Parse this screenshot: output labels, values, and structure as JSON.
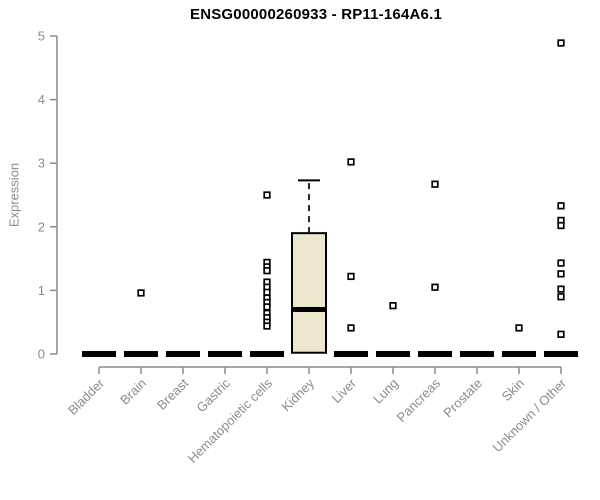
{
  "chart_data": {
    "type": "boxplot",
    "title": "ENSG00000260933 - RP11-164A6.1",
    "ylabel": "Expression",
    "xlabel": "",
    "ylim": [
      0,
      5
    ],
    "yticks": [
      0,
      1,
      2,
      3,
      4,
      5
    ],
    "grid": false,
    "legend": "none",
    "colors": {
      "box_fill": "#ece8cd",
      "box_stroke": "#000000",
      "axis": "#8a8a8a",
      "tick_label": "#8c8c8c",
      "title": "#000000",
      "marker_stroke": "#000000",
      "marker_fill": "#ffffff",
      "background": "#ffffff"
    },
    "categories": [
      "Bladder",
      "Brain",
      "Breast",
      "Gastric",
      "Hematopoietic cells",
      "Kidney",
      "Liver",
      "Lung",
      "Pancreas",
      "Prostate",
      "Skin",
      "Unknown / Other"
    ],
    "boxes": [
      {
        "category": "Bladder",
        "q1": 0,
        "median": 0,
        "q3": 0,
        "whisker_low": 0,
        "whisker_high": 0,
        "outliers": []
      },
      {
        "category": "Brain",
        "q1": 0,
        "median": 0,
        "q3": 0,
        "whisker_low": 0,
        "whisker_high": 0,
        "outliers": [
          0.96
        ]
      },
      {
        "category": "Breast",
        "q1": 0,
        "median": 0,
        "q3": 0,
        "whisker_low": 0,
        "whisker_high": 0,
        "outliers": []
      },
      {
        "category": "Gastric",
        "q1": 0,
        "median": 0,
        "q3": 0,
        "whisker_low": 0,
        "whisker_high": 0,
        "outliers": []
      },
      {
        "category": "Hematopoietic cells",
        "q1": 0,
        "median": 0,
        "q3": 0,
        "whisker_low": 0,
        "whisker_high": 0,
        "outliers": [
          2.5,
          1.44,
          1.37,
          1.31,
          1.13,
          1.05,
          0.97,
          0.88,
          0.81,
          0.74,
          0.64,
          0.57,
          0.5,
          0.44
        ]
      },
      {
        "category": "Kidney",
        "q1": 0.02,
        "median": 0.7,
        "q3": 1.9,
        "whisker_low": 0.02,
        "whisker_high": 2.73,
        "outliers": []
      },
      {
        "category": "Liver",
        "q1": 0,
        "median": 0,
        "q3": 0,
        "whisker_low": 0,
        "whisker_high": 0,
        "outliers": [
          3.02,
          1.22,
          0.41
        ]
      },
      {
        "category": "Lung",
        "q1": 0,
        "median": 0,
        "q3": 0,
        "whisker_low": 0,
        "whisker_high": 0,
        "outliers": [
          0.76
        ]
      },
      {
        "category": "Pancreas",
        "q1": 0,
        "median": 0,
        "q3": 0,
        "whisker_low": 0,
        "whisker_high": 0,
        "outliers": [
          2.67,
          1.05
        ]
      },
      {
        "category": "Prostate",
        "q1": 0,
        "median": 0,
        "q3": 0,
        "whisker_low": 0,
        "whisker_high": 0,
        "outliers": []
      },
      {
        "category": "Skin",
        "q1": 0,
        "median": 0,
        "q3": 0,
        "whisker_low": 0,
        "whisker_high": 0,
        "outliers": [
          0.41
        ]
      },
      {
        "category": "Unknown / Other",
        "q1": 0,
        "median": 0,
        "q3": 0,
        "whisker_low": 0,
        "whisker_high": 0,
        "outliers": [
          4.89,
          2.33,
          2.1,
          2.02,
          1.43,
          1.26,
          1.02,
          0.9,
          0.31
        ]
      }
    ]
  }
}
